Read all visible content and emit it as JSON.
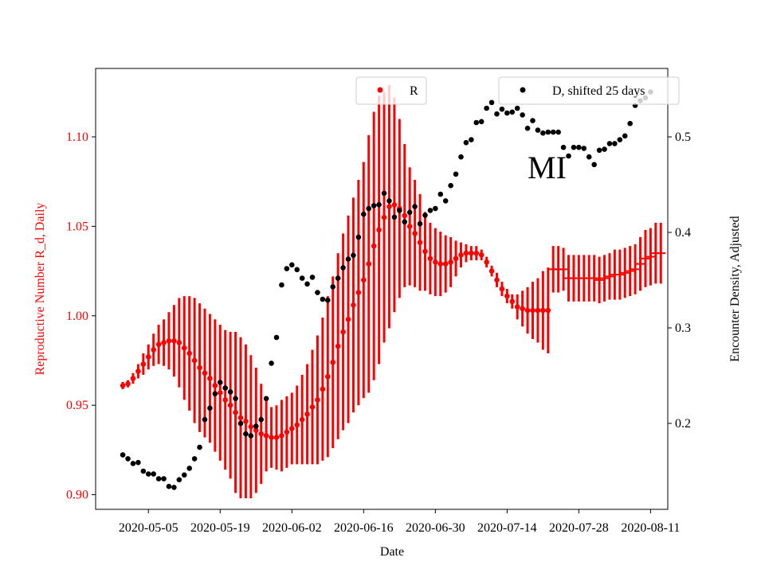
{
  "chart_data": {
    "type": "scatter",
    "xlabel": "Date",
    "ylabel_left": "Reproductive Number R_d, Daily",
    "ylabel_right": "Encounter Density, Adjusted",
    "annotation": "MI",
    "x_start_date": "2020-04-30",
    "x_ticks": [
      "2020-05-05",
      "2020-05-19",
      "2020-06-02",
      "2020-06-16",
      "2020-06-30",
      "2020-07-14",
      "2020-07-28",
      "2020-08-11"
    ],
    "y_left_ticks": [
      "0.90",
      "0.95",
      "1.00",
      "1.05",
      "1.10"
    ],
    "y_left_range": [
      0.89,
      1.1375
    ],
    "y_right_ticks": [
      "0.2",
      "0.3",
      "0.4",
      "0.5"
    ],
    "y_right_range": [
      0.1125,
      0.5633
    ],
    "colors": {
      "R": "#ff0000",
      "D": "#000000"
    },
    "legend": [
      {
        "label": "R",
        "placement": "top-center"
      },
      {
        "label": "D, shifted 25 days",
        "placement": "top-right"
      }
    ],
    "series": [
      {
        "name": "R",
        "axis": "left",
        "marker": "dot",
        "start_day": 0,
        "values": [
          0.961,
          0.962,
          0.965,
          0.969,
          0.973,
          0.977,
          0.981,
          0.984,
          0.985,
          0.986,
          0.986,
          0.985,
          0.982,
          0.979,
          0.975,
          0.971,
          0.968,
          0.965,
          0.961,
          0.957,
          0.953,
          0.95,
          0.946,
          0.943,
          0.941,
          0.938,
          0.936,
          0.934,
          0.933,
          0.932,
          0.932,
          0.933,
          0.935,
          0.937,
          0.939,
          0.942,
          0.945,
          0.949,
          0.953,
          0.959,
          0.966,
          0.974,
          0.983,
          0.991,
          0.998,
          1.006,
          1.013,
          1.02,
          1.029,
          1.039,
          1.048,
          1.055,
          1.061,
          1.062,
          1.06,
          1.056,
          1.05,
          1.046,
          1.041,
          1.036,
          1.032,
          1.03,
          1.029,
          1.029,
          1.03,
          1.032,
          1.034,
          1.035,
          1.035,
          1.035,
          1.034,
          1.03,
          1.025,
          1.02,
          1.015,
          1.011,
          1.008,
          1.005,
          1.004,
          1.003,
          1.003,
          1.003,
          1.003,
          1.003
        ],
        "errors": [
          0.002,
          0.002,
          0.003,
          0.004,
          0.006,
          0.007,
          0.009,
          0.011,
          0.013,
          0.016,
          0.02,
          0.025,
          0.029,
          0.032,
          0.035,
          0.036,
          0.036,
          0.036,
          0.037,
          0.038,
          0.039,
          0.041,
          0.045,
          0.045,
          0.043,
          0.04,
          0.035,
          0.028,
          0.02,
          0.017,
          0.018,
          0.02,
          0.02,
          0.02,
          0.022,
          0.025,
          0.028,
          0.032,
          0.036,
          0.04,
          0.045,
          0.048,
          0.052,
          0.055,
          0.058,
          0.06,
          0.063,
          0.066,
          0.072,
          0.075,
          0.075,
          0.07,
          0.068,
          0.06,
          0.05,
          0.04,
          0.033,
          0.03,
          0.027,
          0.022,
          0.02,
          0.019,
          0.018,
          0.016,
          0.014,
          0.01,
          0.007,
          0.005,
          0.004,
          0.004,
          0.003,
          0.003,
          0.003,
          0.004,
          0.004,
          0.004,
          0.004,
          0.007,
          0.01,
          0.013,
          0.016,
          0.018,
          0.022,
          0.024
        ]
      },
      {
        "name": "R",
        "axis": "left",
        "marker": "hline",
        "start_day": 84,
        "values": [
          1.026,
          1.026,
          1.026,
          1.021,
          1.021,
          1.021,
          1.021,
          1.021,
          1.021,
          1.02,
          1.021,
          1.022,
          1.023,
          1.023,
          1.024,
          1.025,
          1.026,
          1.029,
          1.032,
          1.033,
          1.035,
          1.035
        ],
        "errors": [
          0.013,
          0.013,
          0.012,
          0.013,
          0.013,
          0.013,
          0.013,
          0.013,
          0.013,
          0.013,
          0.013,
          0.013,
          0.014,
          0.014,
          0.014,
          0.014,
          0.014,
          0.015,
          0.016,
          0.016,
          0.017,
          0.017
        ]
      },
      {
        "name": "D, shifted 25 days",
        "axis": "right",
        "marker": "dot",
        "start_day": 0,
        "values": [
          0.167,
          0.163,
          0.158,
          0.159,
          0.15,
          0.147,
          0.147,
          0.142,
          0.142,
          0.134,
          0.133,
          0.141,
          0.146,
          0.153,
          0.163,
          0.175,
          0.204,
          0.216,
          0.231,
          0.243,
          0.237,
          0.233,
          0.226,
          0.2,
          0.189,
          0.187,
          0.197,
          0.204,
          0.226,
          0.263,
          0.29,
          0.345,
          0.362,
          0.366,
          0.361,
          0.352,
          0.346,
          0.353,
          0.337,
          0.33,
          0.329,
          0.343,
          0.352,
          0.363,
          0.372,
          0.376,
          0.395,
          0.419,
          0.425,
          0.428,
          0.429,
          0.441,
          0.433,
          0.416,
          0.423,
          0.411,
          0.421,
          0.427,
          0.409,
          0.418,
          0.423,
          0.425,
          0.44,
          0.433,
          0.449,
          0.461,
          0.479,
          0.494,
          0.497,
          0.515,
          0.516,
          0.53,
          0.536,
          0.524,
          0.529,
          0.525,
          0.526,
          0.53,
          0.523,
          0.509,
          0.517,
          0.507,
          0.504,
          0.505,
          0.505,
          0.505,
          0.489,
          0.48,
          0.489,
          0.489,
          0.488,
          0.479,
          0.471,
          0.486,
          0.487,
          0.493,
          0.493,
          0.497,
          0.501,
          0.514,
          0.533,
          0.538,
          0.541,
          0.547
        ]
      }
    ]
  }
}
